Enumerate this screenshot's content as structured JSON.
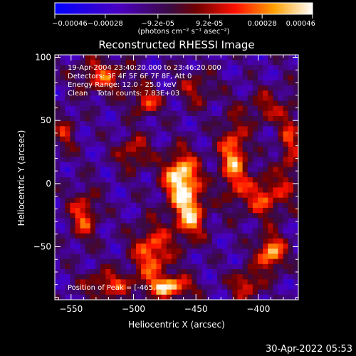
{
  "chart_data": {
    "type": "heatmap",
    "title": "Reconstructed RHESSI Image",
    "xlabel": "Heliocentric X (arcsec)",
    "ylabel": "Heliocentric Y (arcsec)",
    "xlim": [
      -563,
      -368
    ],
    "ylim": [
      -92,
      102
    ],
    "x_ticks": [
      -550,
      -500,
      -450,
      -400
    ],
    "y_ticks": [
      -50,
      0,
      50,
      100
    ],
    "x_minor_step": 10,
    "y_minor_step": 10,
    "colorbar": {
      "range": [
        -0.00046,
        0.00046
      ],
      "tick_values": [
        -0.00046,
        -0.00028,
        -9.2e-05,
        9.2e-05,
        0.00028,
        0.00046
      ],
      "tick_labels": [
        "-0.00046",
        "-0.00028",
        "-9.2e-05",
        "9.2e-05",
        "0.00028",
        "0.00046"
      ],
      "unit_label": "(photons cm⁻² s⁻¹ asec⁻²)",
      "colormap": "blue-purple-red-orange-yellow-white"
    },
    "annotations": [
      "19-Apr-2004 23:40:20.000 to 23:46:20.000",
      "Detectors: 3F 4F 5F 6F 7F 8F, Att 0",
      "Energy Range: 12.0 - 25.0 keV",
      "Clean    Total counts: 7.83E+03"
    ],
    "peak_label": "Position of Peak = [-465,-4]",
    "peak": {
      "x": -465,
      "y": -4
    },
    "sources": [
      {
        "x": -462,
        "y": 5,
        "sigma_x": 10,
        "sigma_y": 14,
        "amp": 1.0
      },
      {
        "x": -455,
        "y": -25,
        "sigma_x": 9,
        "sigma_y": 14,
        "amp": 0.8
      },
      {
        "x": -485,
        "y": -55,
        "sigma_x": 11,
        "sigma_y": 16,
        "amp": 0.7
      },
      {
        "x": -470,
        "y": -82,
        "sigma_x": 12,
        "sigma_y": 6,
        "amp": 0.85
      },
      {
        "x": -520,
        "y": -80,
        "sigma_x": 14,
        "sigma_y": 8,
        "amp": 0.55
      },
      {
        "x": -540,
        "y": -25,
        "sigma_x": 8,
        "sigma_y": 14,
        "amp": 0.6
      },
      {
        "x": -525,
        "y": 85,
        "sigma_x": 14,
        "sigma_y": 10,
        "amp": 0.55
      },
      {
        "x": -490,
        "y": 65,
        "sigma_x": 8,
        "sigma_y": 8,
        "amp": 0.6
      },
      {
        "x": -500,
        "y": 25,
        "sigma_x": 9,
        "sigma_y": 10,
        "amp": 0.5
      },
      {
        "x": -420,
        "y": 20,
        "sigma_x": 8,
        "sigma_y": 22,
        "amp": 0.75
      },
      {
        "x": -395,
        "y": -10,
        "sigma_x": 12,
        "sigma_y": 12,
        "amp": 0.6
      },
      {
        "x": -390,
        "y": -55,
        "sigma_x": 8,
        "sigma_y": 10,
        "amp": 0.85
      },
      {
        "x": -410,
        "y": -80,
        "sigma_x": 8,
        "sigma_y": 8,
        "amp": 0.6
      },
      {
        "x": -375,
        "y": 30,
        "sigma_x": 6,
        "sigma_y": 25,
        "amp": 0.5
      },
      {
        "x": -395,
        "y": 60,
        "sigma_x": 10,
        "sigma_y": 10,
        "amp": 0.4
      },
      {
        "x": -450,
        "y": 75,
        "sigma_x": 10,
        "sigma_y": 10,
        "amp": 0.4
      },
      {
        "x": -555,
        "y": 40,
        "sigma_x": 6,
        "sigma_y": 12,
        "amp": 0.4
      }
    ]
  },
  "footer": {
    "timestamp": "30-Apr-2022 05:53"
  }
}
